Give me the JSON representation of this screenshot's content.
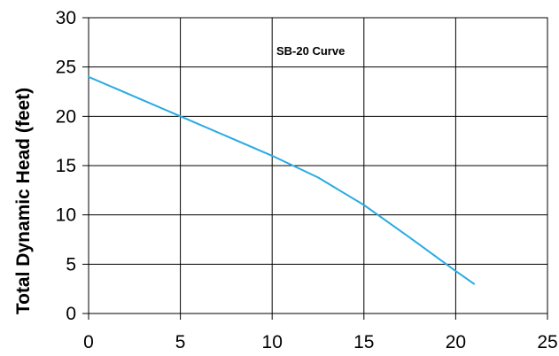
{
  "chart_data": {
    "type": "line",
    "title": "",
    "xlabel": "",
    "ylabel": "Total Dynamic Head (feet)",
    "xlim": [
      0,
      25
    ],
    "ylim": [
      0,
      30
    ],
    "x_ticks": [
      0,
      5,
      10,
      15,
      20,
      25
    ],
    "y_ticks": [
      0,
      5,
      10,
      15,
      20,
      25,
      30
    ],
    "grid": true,
    "annotation": "SB-20 Curve",
    "series": [
      {
        "color": "#29ABE2",
        "x": [
          0,
          5,
          10,
          12.5,
          15,
          17.5,
          20,
          21
        ],
        "y": [
          24,
          20,
          16,
          13.8,
          11,
          7.7,
          4.3,
          3
        ]
      }
    ]
  }
}
